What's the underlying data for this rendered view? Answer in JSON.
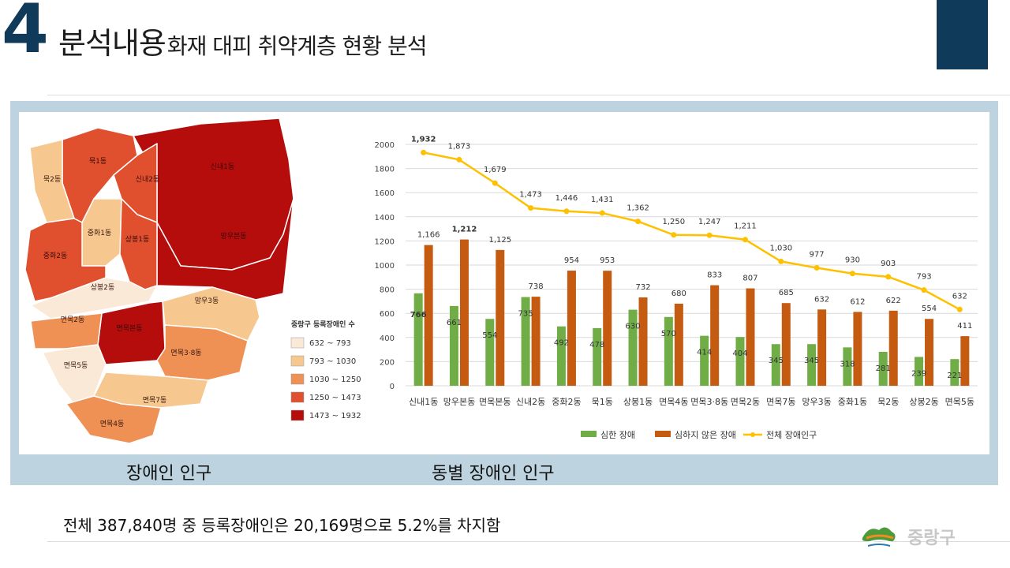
{
  "header": {
    "number": "4",
    "title_main": "분석내용",
    "title_sub": "화재 대피 취약계층 현황 분석"
  },
  "colors": {
    "navy": "#0f3a5a",
    "panel": "#bdd3df",
    "severe": "#70ad47",
    "mild": "#c55a11",
    "total": "#ffc000"
  },
  "map": {
    "caption": "장애인 인구",
    "legend_title": "중랑구 등록장애인 수",
    "legend": [
      {
        "label": "632 ~ 793",
        "color": "#fbe9d7"
      },
      {
        "label": "793 ~ 1030",
        "color": "#f6c78e"
      },
      {
        "label": "1030 ~ 1250",
        "color": "#ef9055"
      },
      {
        "label": "1250 ~ 1473",
        "color": "#e0502f"
      },
      {
        "label": "1473 ~ 1932",
        "color": "#b50c0c"
      }
    ],
    "regions": [
      {
        "name": "신내1동",
        "color": "#b50c0c"
      },
      {
        "name": "망우본동",
        "color": "#b50c0c"
      },
      {
        "name": "면목본동",
        "color": "#b50c0c"
      },
      {
        "name": "묵1동",
        "color": "#e0502f"
      },
      {
        "name": "신내2동",
        "color": "#e0502f"
      },
      {
        "name": "중화2동",
        "color": "#e0502f"
      },
      {
        "name": "상봉1동",
        "color": "#e0502f"
      },
      {
        "name": "묵2동",
        "color": "#f6c78e"
      },
      {
        "name": "중화1동",
        "color": "#f6c78e"
      },
      {
        "name": "망우3동",
        "color": "#f6c78e"
      },
      {
        "name": "면목7동",
        "color": "#f6c78e"
      },
      {
        "name": "면목2동",
        "color": "#ef9055"
      },
      {
        "name": "면목3·8동",
        "color": "#ef9055"
      },
      {
        "name": "면목4동",
        "color": "#ef9055"
      },
      {
        "name": "상봉2동",
        "color": "#fbe9d7"
      },
      {
        "name": "면목5동",
        "color": "#fbe9d7"
      }
    ]
  },
  "chart_caption": "동별 장애인 인구",
  "chart_data": {
    "type": "bar",
    "categories": [
      "신내1동",
      "망우본동",
      "면목본동",
      "신내2동",
      "중화2동",
      "묵1동",
      "상봉1동",
      "면목4동",
      "면목3·8동",
      "면목2동",
      "면목7동",
      "망우3동",
      "중화1동",
      "묵2동",
      "상봉2동",
      "면목5동"
    ],
    "series": [
      {
        "name": "심한 장애",
        "type": "bar",
        "color": "#70ad47",
        "values": [
          766,
          661,
          554,
          735,
          492,
          478,
          630,
          570,
          414,
          404,
          345,
          345,
          318,
          281,
          239,
          221
        ]
      },
      {
        "name": "심하지 않은 장애",
        "type": "bar",
        "color": "#c55a11",
        "values": [
          1166,
          1212,
          1125,
          738,
          954,
          953,
          732,
          680,
          833,
          807,
          685,
          632,
          612,
          622,
          554,
          411
        ]
      },
      {
        "name": "전체 장애인구",
        "type": "line",
        "color": "#ffc000",
        "values": [
          1932,
          1873,
          1679,
          1473,
          1446,
          1431,
          1362,
          1250,
          1247,
          1211,
          1030,
          977,
          930,
          903,
          793,
          632
        ]
      }
    ],
    "ylim": [
      0,
      2000
    ],
    "yticks": [
      "0",
      "200",
      "400",
      "600",
      "800",
      "1000",
      "1200",
      "1400",
      "1600",
      "1800",
      "2000"
    ],
    "labels": {
      "severe": [
        "766",
        "661",
        "554",
        "735",
        "492",
        "478",
        "630",
        "570",
        "414",
        "404",
        "345",
        "345",
        "318",
        "281",
        "239",
        "221"
      ],
      "mild": [
        "1,166",
        "1,212",
        "1,125",
        "738",
        "954",
        "953",
        "732",
        "680",
        "833",
        "807",
        "685",
        "632",
        "612",
        "622",
        "554",
        "411"
      ],
      "total": [
        "1,932",
        "1,873",
        "1,679",
        "1,473",
        "1,446",
        "1,431",
        "1,362",
        "1,250",
        "1,247",
        "1,211",
        "1,030",
        "977",
        "930",
        "903",
        "793",
        "632"
      ]
    },
    "grid": true,
    "legend_position": "bottom"
  },
  "summary": "전체 387,840명 중 등록장애인은 20,169명으로 5.2%를 차지함",
  "logo_text": "중랑구"
}
